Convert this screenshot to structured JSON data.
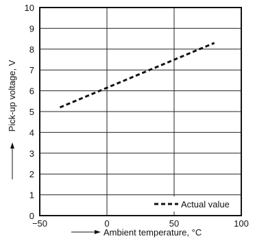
{
  "chart_data": {
    "type": "line",
    "xlabel": "Ambient temperature, °C",
    "ylabel": "Pick-up voltage, V",
    "xlim": [
      -50,
      100
    ],
    "ylim": [
      0,
      10
    ],
    "xticks": [
      -50,
      0,
      50,
      100
    ],
    "yticks": [
      0,
      1,
      2,
      3,
      4,
      5,
      6,
      7,
      8,
      9,
      10
    ],
    "grid": true,
    "legend_position": "bottom-right",
    "series": [
      {
        "name": "Actual value",
        "style": "dashed",
        "color": "#111111",
        "x": [
          -35,
          80
        ],
        "y": [
          5.2,
          8.3
        ]
      }
    ]
  }
}
